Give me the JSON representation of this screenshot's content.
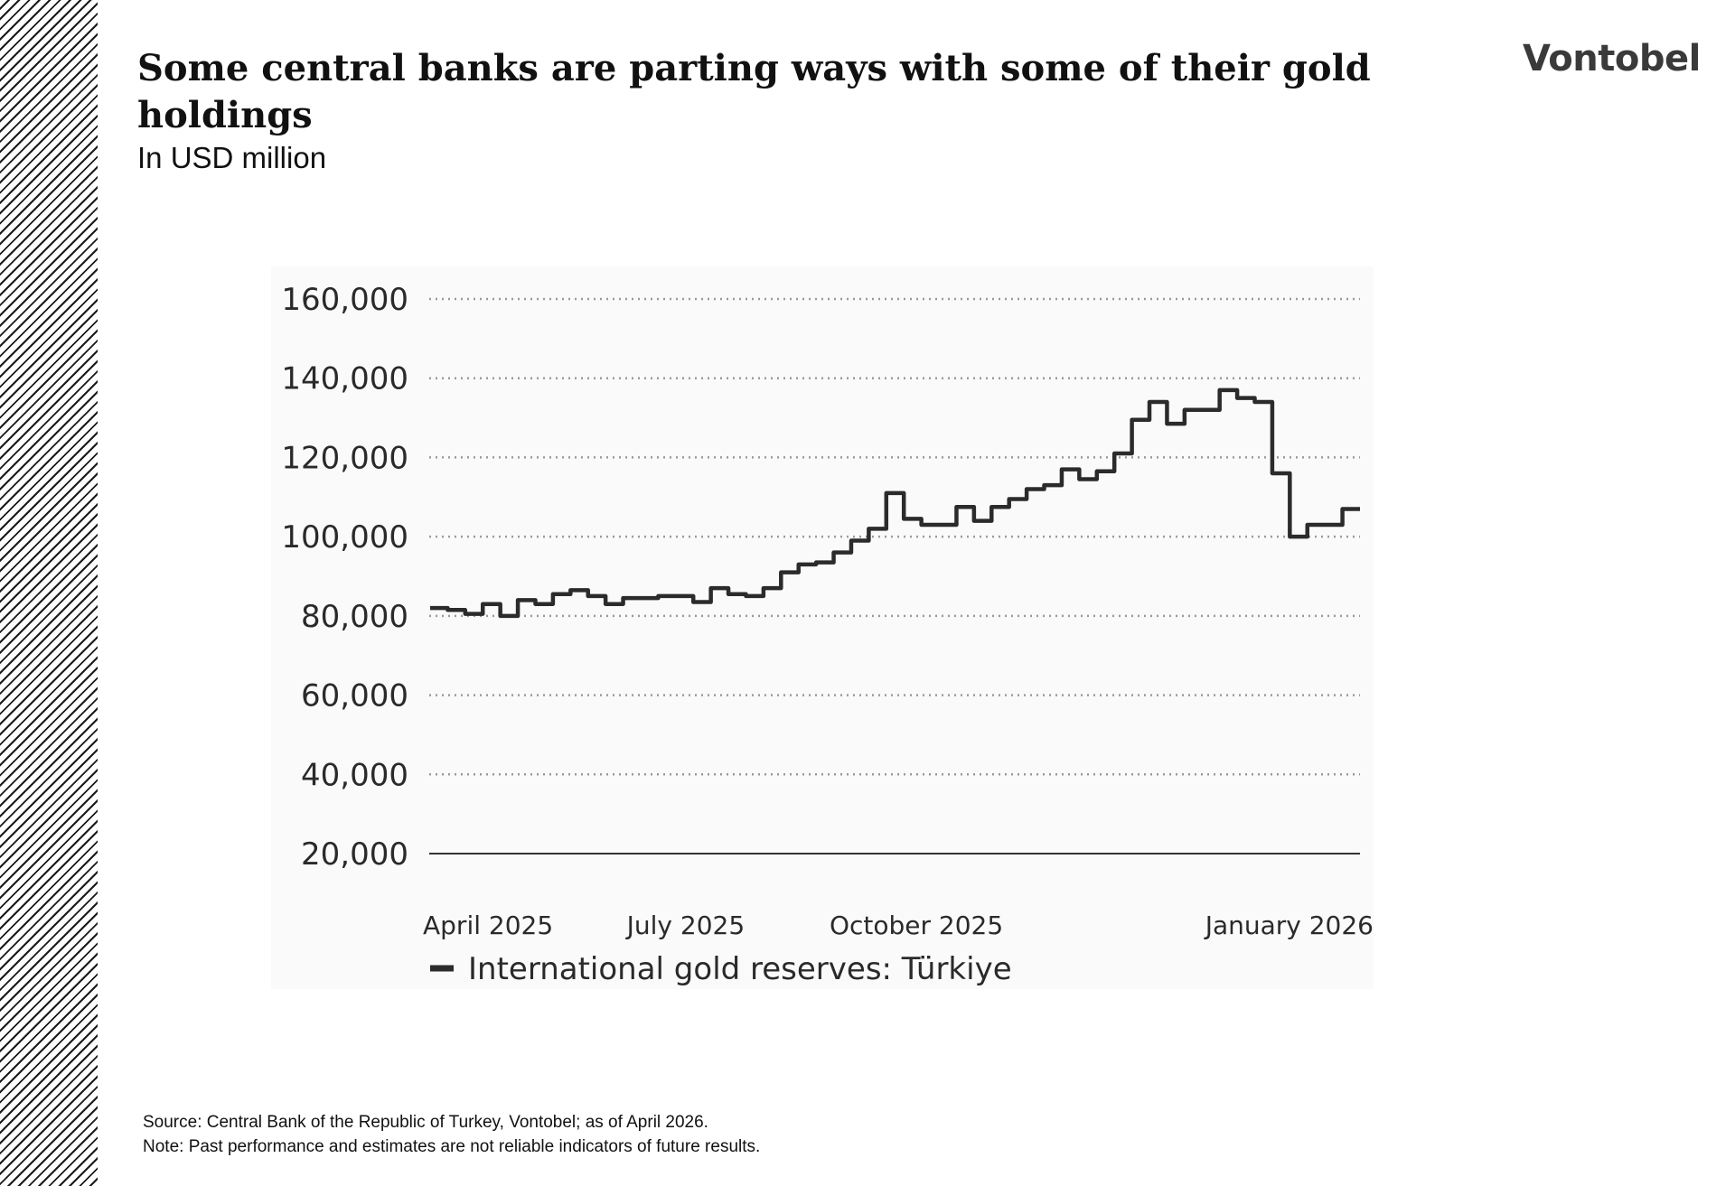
{
  "header": {
    "title": "Some central banks are parting ways with some of their gold holdings",
    "subtitle": "In USD million",
    "logo_text": "Vontobel"
  },
  "footer": {
    "source": "Source: Central Bank of the Republic of Turkey, Vontobel; as of April 2026.",
    "note": "Note: Past performance and estimates are not reliable indicators of future results."
  },
  "chart_data": {
    "type": "line",
    "title": "",
    "xlabel": "",
    "ylabel": "",
    "ylim": [
      20000,
      160000
    ],
    "yticks": [
      20000,
      40000,
      60000,
      80000,
      100000,
      120000,
      140000,
      160000
    ],
    "ytick_labels": [
      "20,000",
      "40,000",
      "60,000",
      "80,000",
      "100,000",
      "120,000",
      "140,000",
      "160,000"
    ],
    "xlim": [
      "2025-03-21",
      "2026-03-27"
    ],
    "xticks": [
      {
        "date": "2025-04-01",
        "label": "April 2025"
      },
      {
        "date": "2025-07-01",
        "label": "July 2025"
      },
      {
        "date": "2025-10-01",
        "label": "October 2025"
      },
      {
        "date": "2026-01-01",
        "label": "January 2026"
      }
    ],
    "grid": "horizontal-dotted",
    "legend": {
      "position": "bottom-left"
    },
    "line_color": "#2b2b2b",
    "series": [
      {
        "name": "International gold reserves: Türkiye",
        "step": true,
        "x": [
          "2025-03-21",
          "2025-03-28",
          "2025-04-04",
          "2025-04-11",
          "2025-04-18",
          "2025-04-25",
          "2025-05-02",
          "2025-05-09",
          "2025-05-16",
          "2025-05-23",
          "2025-05-30",
          "2025-06-06",
          "2025-06-13",
          "2025-06-20",
          "2025-06-27",
          "2025-07-04",
          "2025-07-11",
          "2025-07-18",
          "2025-07-25",
          "2025-08-01",
          "2025-08-08",
          "2025-08-15",
          "2025-08-22",
          "2025-08-29",
          "2025-09-05",
          "2025-09-12",
          "2025-09-19",
          "2025-09-26",
          "2025-10-03",
          "2025-10-10",
          "2025-10-17",
          "2025-10-24",
          "2025-10-31",
          "2025-11-07",
          "2025-11-14",
          "2025-11-21",
          "2025-11-28",
          "2025-12-05",
          "2025-12-12",
          "2025-12-19",
          "2025-12-26",
          "2026-01-02",
          "2026-01-09",
          "2026-01-16",
          "2026-01-23",
          "2026-01-30",
          "2026-02-06",
          "2026-02-13",
          "2026-02-20",
          "2026-02-27",
          "2026-03-06",
          "2026-03-13",
          "2026-03-20",
          "2026-03-27"
        ],
        "values": [
          82000,
          81500,
          80500,
          83000,
          80000,
          84000,
          83000,
          85500,
          86500,
          85000,
          83000,
          84500,
          84500,
          85000,
          85000,
          83500,
          87000,
          85500,
          85000,
          87000,
          91000,
          93000,
          93500,
          96000,
          99000,
          102000,
          111000,
          104500,
          103000,
          103000,
          107500,
          104000,
          107500,
          109500,
          112000,
          113000,
          117000,
          114500,
          116500,
          121000,
          129500,
          134000,
          128500,
          132000,
          132000,
          137000,
          135000,
          134000,
          116000,
          100000,
          103000,
          103000,
          107000,
          107000
        ]
      }
    ]
  }
}
